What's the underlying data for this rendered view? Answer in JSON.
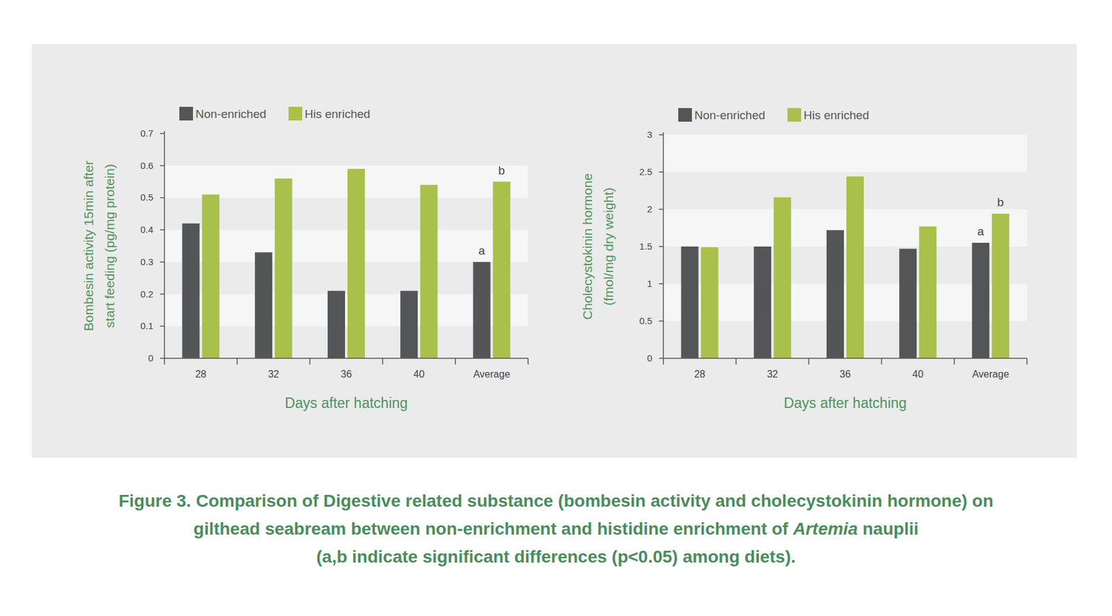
{
  "chart_data": [
    {
      "type": "bar",
      "y_label": [
        "Bombesin activity 15min after",
        "start feeding (pg/mg protein)"
      ],
      "x_label": "Days after hatching",
      "categories": [
        "28",
        "32",
        "36",
        "40",
        "Average"
      ],
      "series": [
        {
          "name": "Non-enriched",
          "color": "#545557",
          "values": [
            0.42,
            0.33,
            0.21,
            0.21,
            0.3
          ]
        },
        {
          "name": "His enriched",
          "color": "#a9c04b",
          "values": [
            0.51,
            0.56,
            0.59,
            0.54,
            0.55
          ]
        }
      ],
      "ylim": [
        0,
        0.7
      ],
      "yticks": [
        0,
        0.1,
        0.2,
        0.3,
        0.4,
        0.5,
        0.6,
        0.7
      ],
      "grid": true,
      "legend": "top-left",
      "annotations": [
        {
          "text": "a",
          "category": "Average",
          "series": "Non-enriched"
        },
        {
          "text": "b",
          "category": "Average",
          "series": "His enriched"
        }
      ]
    },
    {
      "type": "bar",
      "y_label": [
        "Cholecystokinin hormone",
        "(fmol/mg dry weight)"
      ],
      "x_label": "Days after hatching",
      "categories": [
        "28",
        "32",
        "36",
        "40",
        "Average"
      ],
      "series": [
        {
          "name": "Non-enriched",
          "color": "#545557",
          "values": [
            1.5,
            1.5,
            1.72,
            1.47,
            1.55
          ]
        },
        {
          "name": "His enriched",
          "color": "#a9c04b",
          "values": [
            1.49,
            2.16,
            2.44,
            1.77,
            1.94
          ]
        }
      ],
      "ylim": [
        0,
        3
      ],
      "yticks": [
        0,
        0.5,
        1,
        1.5,
        2,
        2.5,
        3
      ],
      "grid": true,
      "legend": "top-left",
      "annotations": [
        {
          "text": "a",
          "category": "Average",
          "series": "Non-enriched"
        },
        {
          "text": "b",
          "category": "Average",
          "series": "His enriched"
        }
      ]
    }
  ],
  "caption": {
    "lines": [
      [
        {
          "text": "Figure 3. Comparison of Digestive related substance (bombesin activity and cholecystokinin hormone) on",
          "italic": false
        }
      ],
      [
        {
          "text": "gilthead seabream between non-enrichment and histidine enrichment of ",
          "italic": false
        },
        {
          "text": "Artemia",
          "italic": true
        },
        {
          "text": " nauplii",
          "italic": false
        }
      ],
      [
        {
          "text": "(a,b indicate significant differences (p<0.05) among diets).",
          "italic": false
        }
      ]
    ]
  }
}
